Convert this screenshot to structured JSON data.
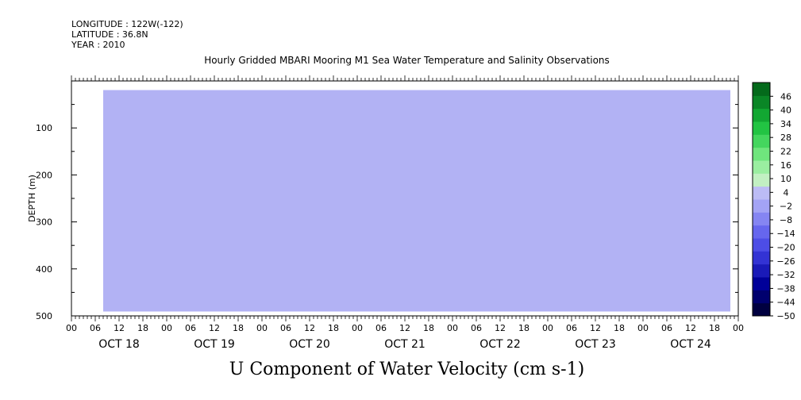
{
  "meta": {
    "longitude": "LONGITUDE : 122W(-122)",
    "latitude": "LATITUDE : 36.8N",
    "year": "YEAR : 2010"
  },
  "chart_data": {
    "type": "heatmap",
    "title": "Hourly Gridded MBARI Mooring M1 Sea Water Temperature and Salinity Observations",
    "main_title": "U Component of Water Velocity (cm s-1)",
    "ylabel": "DEPTH (m)",
    "xlabel": "",
    "ylim": [
      500,
      0
    ],
    "y_reversed": true,
    "y_ticks": [
      "100",
      "200",
      "300",
      "400",
      "500"
    ],
    "y_tick_values": [
      100,
      200,
      300,
      400,
      500
    ],
    "x_hour_ticks": [
      "00",
      "06",
      "12",
      "18",
      "00",
      "06",
      "12",
      "18",
      "00",
      "06",
      "12",
      "18",
      "00",
      "06",
      "12",
      "18",
      "00",
      "06",
      "12",
      "18",
      "00",
      "06",
      "12",
      "18",
      "00",
      "06",
      "12",
      "18",
      "00"
    ],
    "x_day_labels": [
      "OCT 18",
      "OCT 19",
      "OCT 20",
      "OCT 21",
      "OCT 22",
      "OCT 23",
      "OCT 24"
    ],
    "data_extent": {
      "x_start_hours": 8,
      "x_end_hours": 166,
      "depth_top": 20,
      "depth_bottom": 490
    },
    "colorbar": {
      "labels": [
        "46",
        "40",
        "34",
        "28",
        "22",
        "16",
        "10",
        "4",
        "-2",
        "-8",
        "-14",
        "-20",
        "-26",
        "-32",
        "-38",
        "-44",
        "-50"
      ],
      "min": -50,
      "max": 52,
      "step": 6,
      "colors": [
        "#000040",
        "#00006e",
        "#000099",
        "#1a1ab8",
        "#3333d4",
        "#4d4de6",
        "#6666ee",
        "#8585f2",
        "#a3a3f5",
        "#bcbcf5",
        "#c2f0c2",
        "#9aeea0",
        "#6fe57d",
        "#44d65e",
        "#22c443",
        "#12a732",
        "#0a8626",
        "#046a1b"
      ]
    },
    "grid": false,
    "legend": "right-colorbar"
  }
}
